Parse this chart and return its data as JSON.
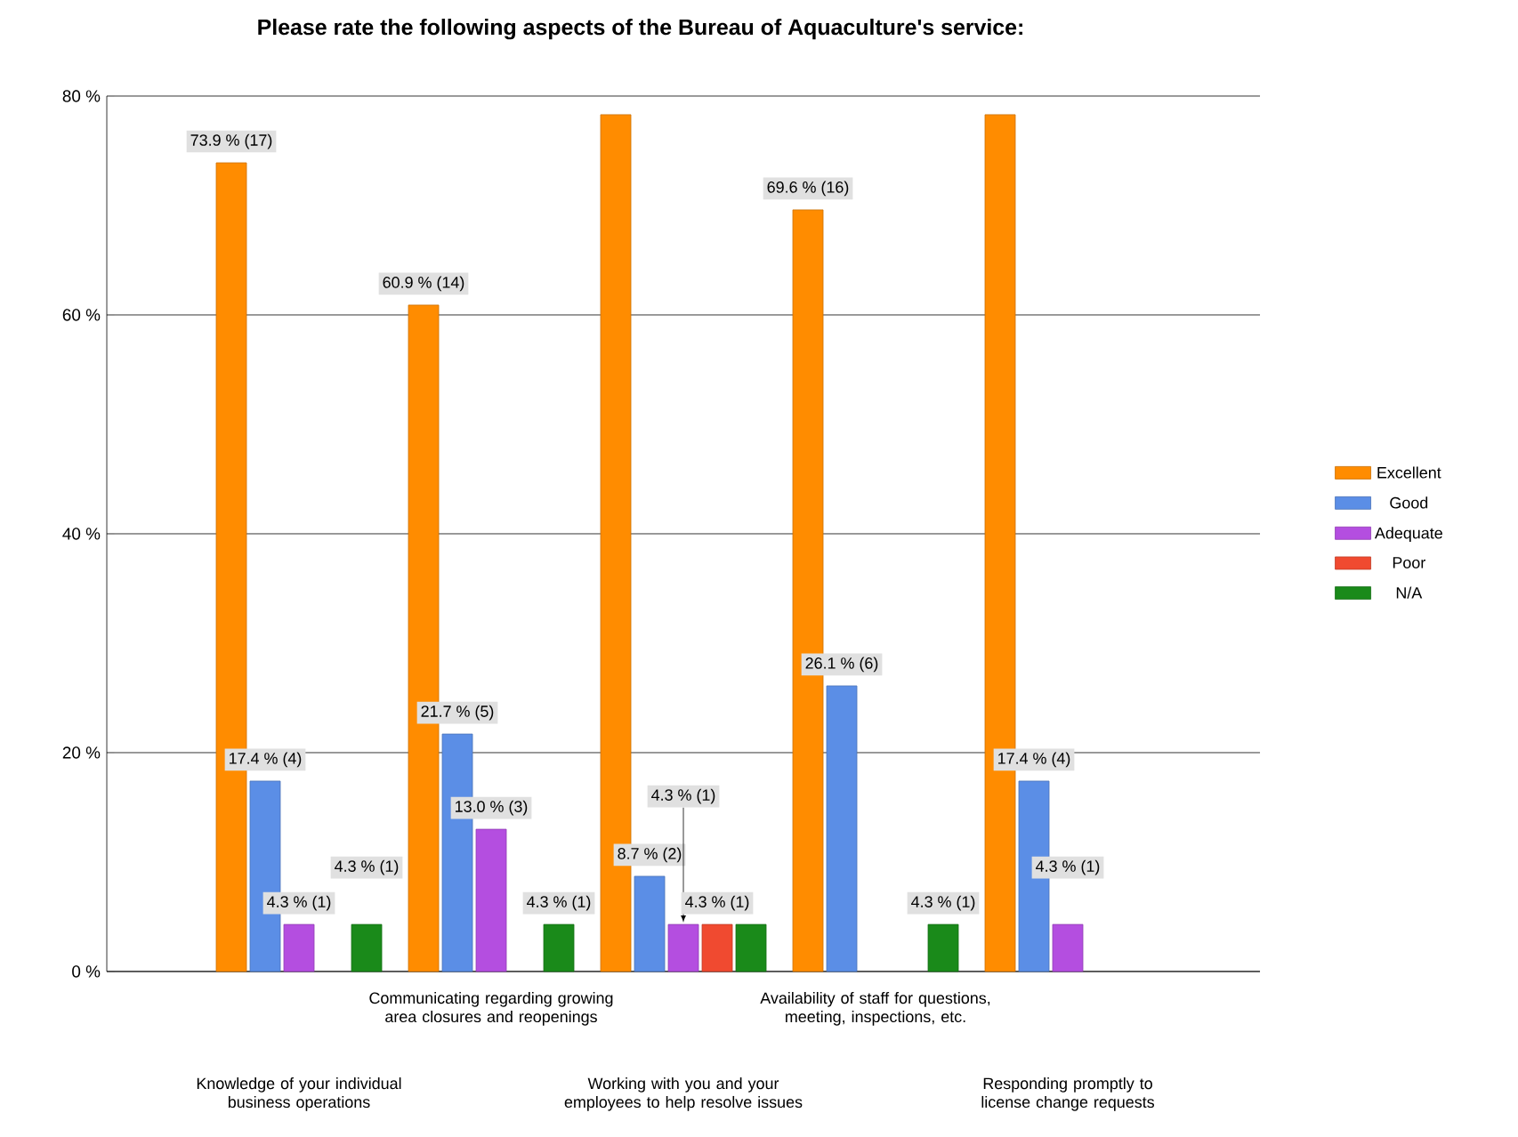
{
  "chart_data": {
    "type": "bar",
    "title": "Please rate the following aspects of the Bureau of Aquaculture's service:",
    "categories": [
      "Knowledge of your individual business operations",
      "Communicating regarding growing area closures and reopenings",
      "Working with you and your employees to help resolve issues",
      "Availability of staff for questions, meeting, inspections, etc.",
      "Responding promptly to license change requests"
    ],
    "series": [
      {
        "name": "Excellent",
        "color": "#ff8c00",
        "values": [
          73.9,
          60.9,
          78.3,
          69.6,
          78.3
        ],
        "value_labels": [
          "73.9 % (17)",
          "60.9 % (14)",
          null,
          "69.6 % (16)",
          null
        ]
      },
      {
        "name": "Good",
        "color": "#5b8ee6",
        "values": [
          17.4,
          21.7,
          8.7,
          26.1,
          17.4
        ],
        "value_labels": [
          "17.4 % (4)",
          "21.7 % (5)",
          "8.7 % (2)",
          "26.1 % (6)",
          "17.4 % (4)"
        ]
      },
      {
        "name": "Adequate",
        "color": "#b44ee0",
        "values": [
          4.3,
          13.0,
          4.3,
          null,
          4.3
        ],
        "value_labels": [
          "4.3 % (1)",
          "13.0 % (3)",
          "4.3 % (1)",
          null,
          "4.3 % (1)"
        ]
      },
      {
        "name": "Poor",
        "color": "#f04a30",
        "values": [
          null,
          null,
          4.3,
          null,
          null
        ],
        "value_labels": [
          null,
          null,
          "4.3 % (1)",
          null,
          null
        ]
      },
      {
        "name": "N/A",
        "color": "#1a8a1a",
        "values": [
          4.3,
          4.3,
          4.3,
          4.3,
          null
        ],
        "value_labels": [
          "4.3 % (1)",
          "4.3 % (1)",
          null,
          "4.3 % (1)",
          null
        ]
      }
    ],
    "ylim": [
      0,
      80
    ],
    "yticks": [
      {
        "value": 0,
        "label": "0 %"
      },
      {
        "value": 20,
        "label": "20 %"
      },
      {
        "value": 40,
        "label": "40 %"
      },
      {
        "value": 60,
        "label": "60 %"
      },
      {
        "value": 80,
        "label": "80 %"
      }
    ],
    "grid": "y",
    "legend": "right"
  }
}
